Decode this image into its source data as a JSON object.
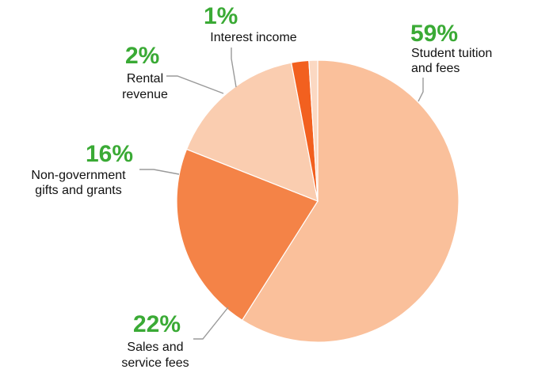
{
  "chart_data": {
    "type": "pie",
    "title": "",
    "slices": [
      {
        "label_lines": [
          "Student tuition",
          "and fees"
        ],
        "value": 59,
        "value_text": "59%",
        "color": "#FAC09B"
      },
      {
        "label_lines": [
          "Sales and",
          "service fees"
        ],
        "value": 22,
        "value_text": "22%",
        "color": "#F48347"
      },
      {
        "label_lines": [
          "Non-government",
          "gifts and grants"
        ],
        "value": 16,
        "value_text": "16%",
        "color": "#FACDB0"
      },
      {
        "label_lines": [
          "Rental",
          "revenue"
        ],
        "value": 2,
        "value_text": "2%",
        "color": "#F2601F"
      },
      {
        "label_lines": [
          "Interest income"
        ],
        "value": 1,
        "value_text": "1%",
        "color": "#FBD8C2"
      }
    ],
    "value_color": "#3AAA35",
    "label_color": "#111111",
    "leader_color": "#9A9A9A"
  }
}
